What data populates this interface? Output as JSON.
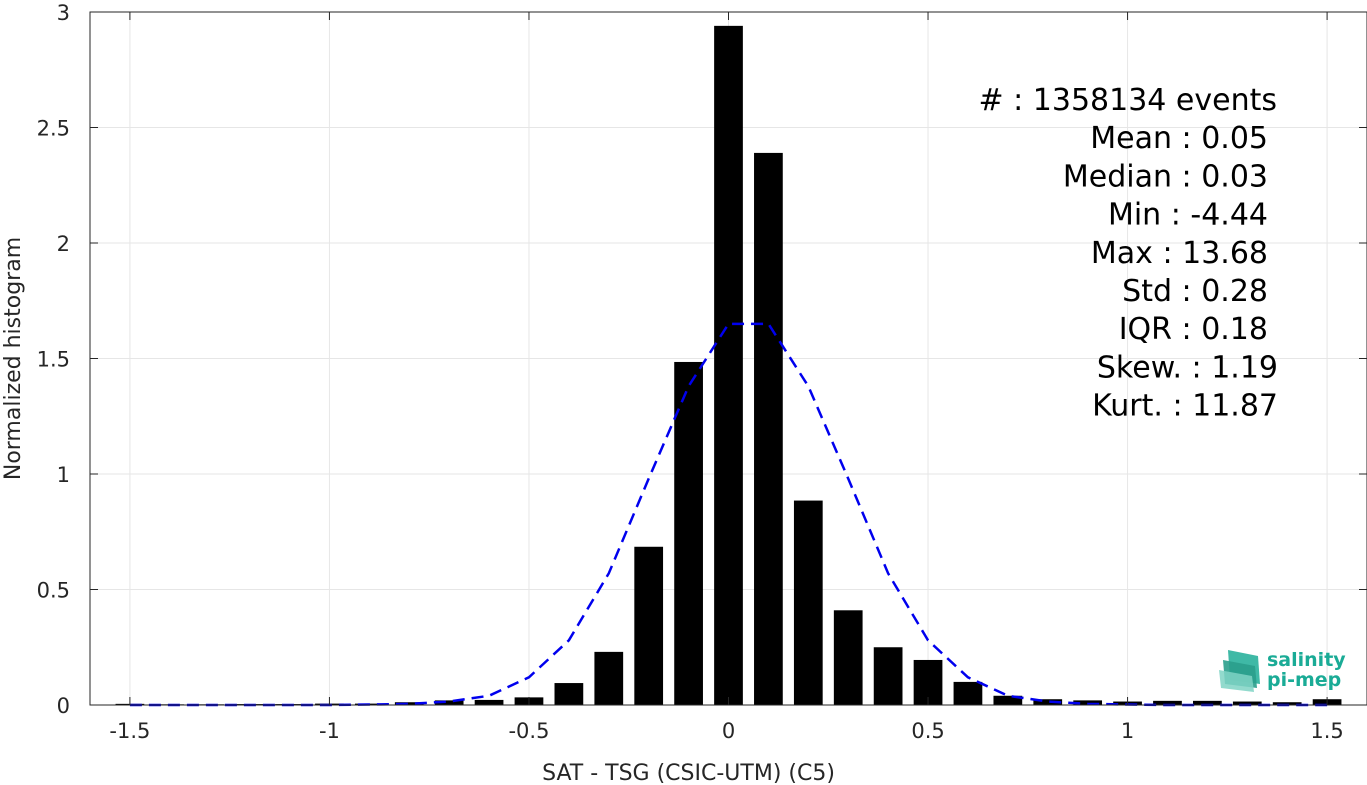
{
  "chart_data": {
    "type": "bar",
    "xlabel": "SAT - TSG (CSIC-UTM) (C5)",
    "ylabel": "Normalized histogram",
    "xlim": [
      -1.6,
      1.6
    ],
    "ylim": [
      0,
      3
    ],
    "xticks": [
      "-1.5",
      "-1",
      "-0.5",
      "0",
      "0.5",
      "1",
      "1.5"
    ],
    "xtick_values": [
      -1.5,
      -1,
      -0.5,
      0,
      0.5,
      1,
      1.5
    ],
    "yticks": [
      "0",
      "0.5",
      "1",
      "1.5",
      "2",
      "2.5",
      "3"
    ],
    "ytick_values": [
      0,
      0.5,
      1,
      1.5,
      2,
      2.5,
      3
    ],
    "grid": true,
    "bar_color": "#000000",
    "fit_color": "#0000ee",
    "bar_width": 0.072,
    "bars": {
      "x": [
        -1.5,
        -1.4,
        -1.3,
        -1.2,
        -1.1,
        -1.0,
        -0.9,
        -0.8,
        -0.7,
        -0.6,
        -0.5,
        -0.4,
        -0.3,
        -0.2,
        -0.1,
        0.0,
        0.1,
        0.2,
        0.3,
        0.4,
        0.5,
        0.6,
        0.7,
        0.8,
        0.9,
        1.0,
        1.1,
        1.2,
        1.3,
        1.4,
        1.5
      ],
      "values": [
        0.005,
        0.003,
        0.003,
        0.004,
        0.004,
        0.006,
        0.006,
        0.012,
        0.02,
        0.022,
        0.033,
        0.095,
        0.23,
        0.685,
        1.485,
        2.94,
        2.39,
        0.885,
        0.41,
        0.25,
        0.195,
        0.1,
        0.04,
        0.025,
        0.02,
        0.015,
        0.018,
        0.018,
        0.015,
        0.012,
        0.025
      ]
    },
    "fit": {
      "name": "",
      "x": [
        -1.5,
        -1.4,
        -1.3,
        -1.2,
        -1.1,
        -1.0,
        -0.9,
        -0.8,
        -0.7,
        -0.6,
        -0.5,
        -0.4,
        -0.3,
        -0.2,
        -0.1,
        0.0,
        0.1,
        0.2,
        0.3,
        0.4,
        0.5,
        0.6,
        0.7,
        0.8,
        0.9,
        1.0,
        1.1,
        1.2,
        1.3,
        1.4,
        1.5
      ],
      "values": [
        0.0,
        0.0,
        0.0,
        0.0,
        0.0,
        0.0,
        0.002,
        0.005,
        0.015,
        0.04,
        0.12,
        0.28,
        0.57,
        0.98,
        1.38,
        1.65,
        1.65,
        1.38,
        0.98,
        0.57,
        0.28,
        0.12,
        0.04,
        0.015,
        0.005,
        0.002,
        0.0,
        0.0,
        0.0,
        0.0,
        0.0
      ]
    }
  },
  "stats": [
    "#  : 1358134 events",
    "Mean : 0.05",
    "Median : 0.03",
    "Min : -4.44",
    "Max : 13.68",
    "Std : 0.28",
    "IQR : 0.18",
    "Skew. : 1.19",
    "Kurt. : 11.87"
  ],
  "logo": {
    "line1": "salinity",
    "line2": "pi-mep",
    "color": "#1aab96"
  }
}
